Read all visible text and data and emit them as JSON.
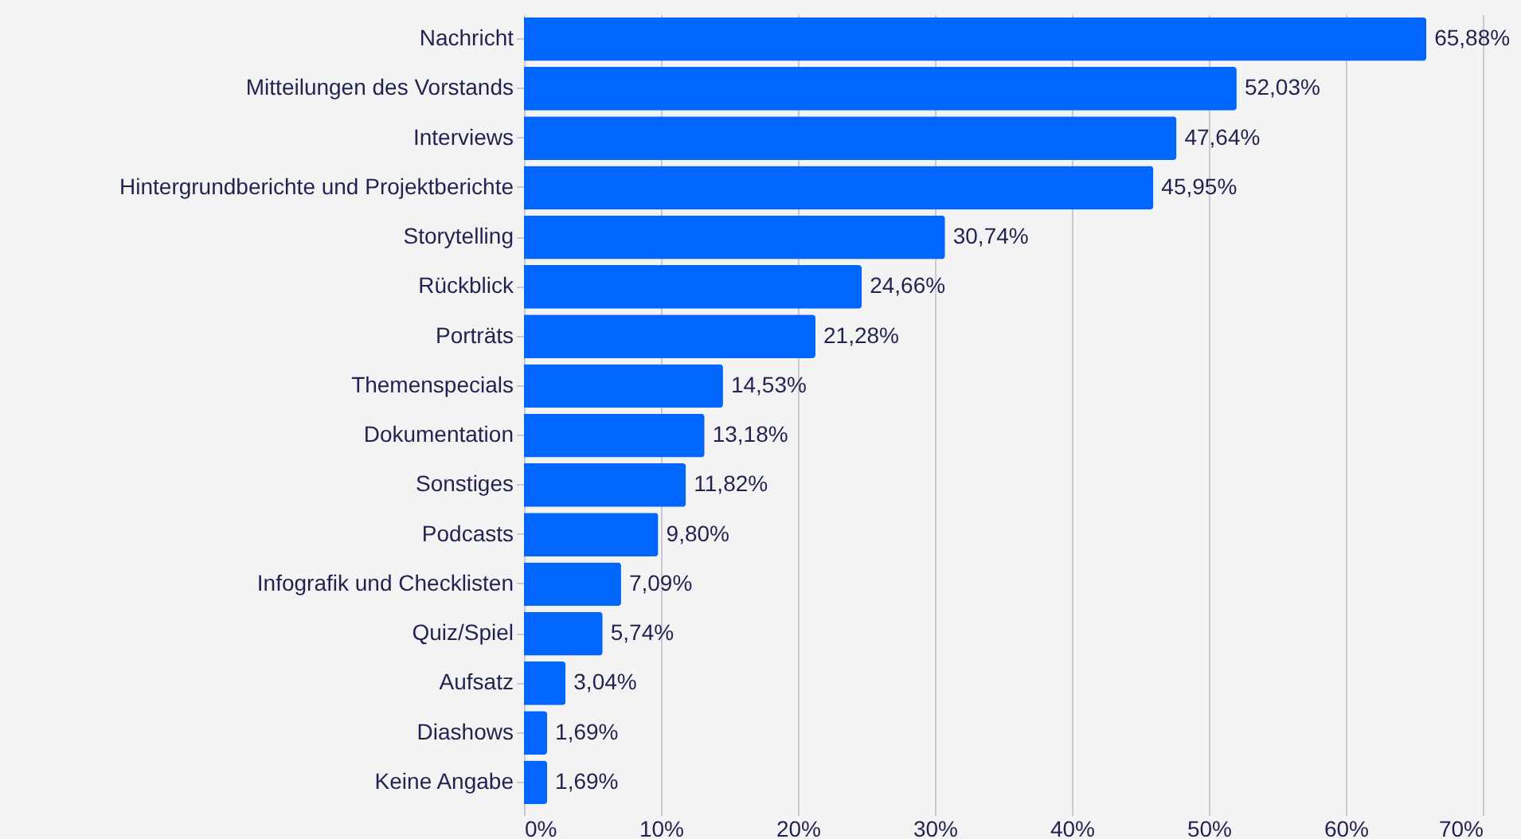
{
  "chart_data": {
    "type": "bar",
    "orientation": "horizontal",
    "categories": [
      "Nachricht",
      "Mitteilungen des Vorstands",
      "Interviews",
      "Hintergrundberichte und Projektberichte",
      "Storytelling",
      "Rückblick",
      "Porträts",
      "Themenspecials",
      "Dokumentation",
      "Sonstiges",
      "Podcasts",
      "Infografik und Checklisten",
      "Quiz/Spiel",
      "Aufsatz",
      "Diashows",
      "Keine Angabe"
    ],
    "values": [
      65.88,
      52.03,
      47.64,
      45.95,
      30.74,
      24.66,
      21.28,
      14.53,
      13.18,
      11.82,
      9.8,
      7.09,
      5.74,
      3.04,
      1.69,
      1.69
    ],
    "value_labels": [
      "65,88%",
      "52,03%",
      "47,64%",
      "45,95%",
      "30,74%",
      "24,66%",
      "21,28%",
      "14,53%",
      "13,18%",
      "11,82%",
      "9,80%",
      "7,09%",
      "5,74%",
      "3,04%",
      "1,69%",
      "1,69%"
    ],
    "color": "#0066ff",
    "xlim": [
      0,
      70
    ],
    "xticks": [
      {
        "value": 0,
        "label": "0%"
      },
      {
        "value": 10,
        "label": "10%"
      },
      {
        "value": 20,
        "label": "20%"
      },
      {
        "value": 30,
        "label": "30%"
      },
      {
        "value": 40,
        "label": "40%"
      },
      {
        "value": 50,
        "label": "50%"
      },
      {
        "value": 60,
        "label": "60%"
      },
      {
        "value": 70,
        "label": "70%"
      }
    ],
    "grid": "x"
  }
}
